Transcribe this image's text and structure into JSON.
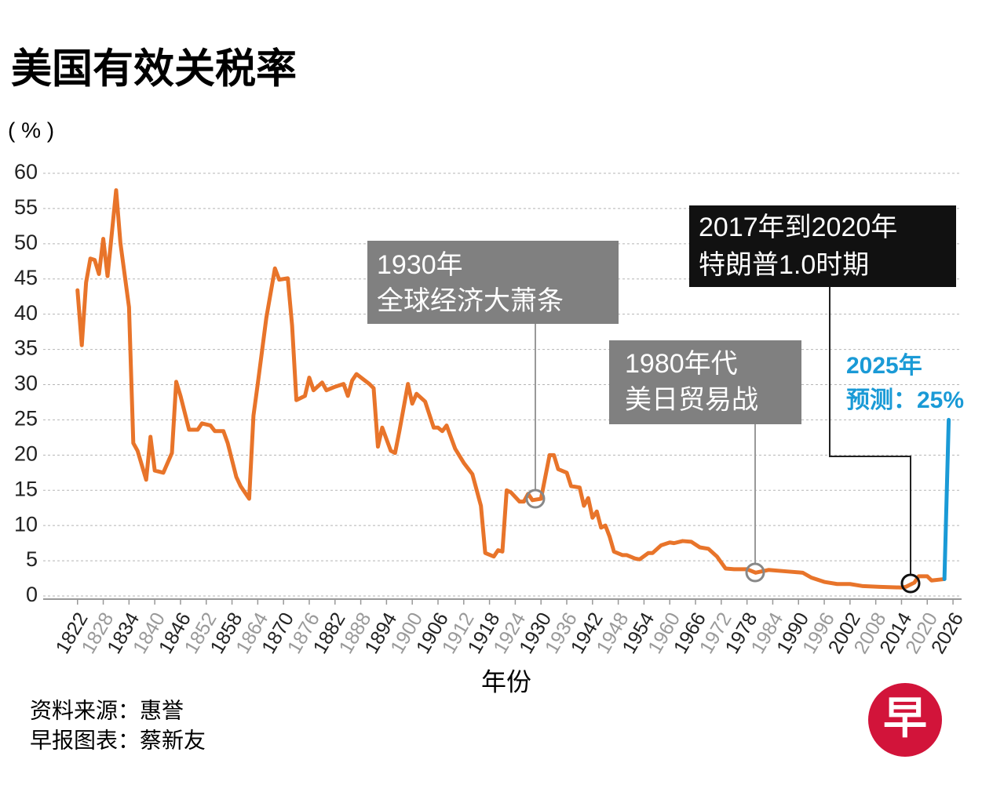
{
  "chart_data": {
    "type": "line",
    "title": "美国有效关税率",
    "y_label": "( % )",
    "x_label": "年份",
    "source": [
      "资料来源：惠誉",
      "早报图表：蔡新友"
    ],
    "logo": "早",
    "annotations": [
      {
        "lines": [
          "1930年",
          "全球经济大萧条"
        ]
      },
      {
        "lines": [
          "1980年代",
          "美日贸易战"
        ]
      },
      {
        "lines": [
          "2017年到2020年",
          "特朗普1.0时期"
        ]
      },
      {
        "lines": [
          "2025年",
          "预测：25%"
        ]
      }
    ],
    "xlim": [
      1814,
      2028
    ],
    "xticks": [
      1822,
      1828,
      1834,
      1840,
      1846,
      1852,
      1858,
      1864,
      1870,
      1876,
      1882,
      1888,
      1894,
      1900,
      1906,
      1912,
      1918,
      1924,
      1930,
      1936,
      1942,
      1948,
      1954,
      1960,
      1966,
      1972,
      1978,
      1984,
      1990,
      1996,
      2002,
      2008,
      2014,
      2020,
      2026
    ],
    "ylim": [
      0,
      60
    ],
    "yticks": [
      0,
      5,
      10,
      15,
      20,
      25,
      30,
      35,
      40,
      45,
      50,
      55,
      60
    ],
    "grid": true,
    "series": [
      {
        "color": "#e8742a",
        "x": [
          1822,
          1823,
          1824,
          1825,
          1826,
          1827,
          1828,
          1829,
          1831,
          1832,
          1834,
          1835,
          1836,
          1838,
          1839,
          1840,
          1842,
          1844,
          1845,
          1846,
          1848,
          1850,
          1851,
          1853,
          1854,
          1856,
          1857,
          1859,
          1860,
          1862,
          1863,
          1864,
          1866,
          1868,
          1869,
          1871,
          1872,
          1873,
          1875,
          1876,
          1877,
          1879,
          1880,
          1882,
          1884,
          1885,
          1886,
          1887,
          1890,
          1891,
          1892,
          1893,
          1895,
          1896,
          1897,
          1899,
          1900,
          1901,
          1903,
          1905,
          1906,
          1907,
          1908,
          1910,
          1912,
          1914,
          1916,
          1917,
          1919,
          1920,
          1921,
          1922,
          1923,
          1925,
          1926,
          1927,
          1928,
          1930,
          1932,
          1933,
          1934,
          1936,
          1937,
          1939,
          1940,
          1941,
          1942,
          1943,
          1944,
          1945,
          1946,
          1947,
          1949,
          1950,
          1952,
          1953,
          1955,
          1956,
          1958,
          1960,
          1961,
          1963,
          1965,
          1967,
          1969,
          1971,
          1973,
          1975,
          1978,
          1980,
          1983,
          1987,
          1991,
          1993,
          1996,
          1999,
          2002,
          2005,
          2009,
          2014,
          2015,
          2017,
          2018,
          2020,
          2021,
          2024
        ],
        "values": [
          43.4,
          35.6,
          44.5,
          47.9,
          47.7,
          45.7,
          50.7,
          45.4,
          57.6,
          50.1,
          41,
          21.7,
          20.6,
          16.5,
          22.6,
          17.8,
          17.5,
          20.3,
          30.4,
          28.4,
          23.6,
          23.6,
          24.5,
          24.2,
          23.4,
          23.4,
          21.7,
          16.9,
          15.6,
          13.8,
          25.6,
          30.1,
          39.5,
          46.5,
          44.9,
          45.1,
          38.4,
          27.8,
          28.4,
          31,
          29.2,
          30.3,
          29.2,
          29.7,
          30.1,
          28.4,
          30.6,
          31.5,
          30.1,
          29.5,
          21.2,
          23.9,
          20.6,
          20.3,
          23.4,
          30.1,
          27.3,
          28.7,
          27.6,
          23.9,
          23.9,
          23.4,
          24.2,
          20.9,
          18.9,
          17.3,
          12.8,
          6.1,
          5.6,
          6.5,
          6.3,
          15.0,
          14.7,
          13.4,
          13.4,
          14.5,
          13.6,
          13.8,
          20.0,
          20.0,
          18.0,
          17.5,
          15.6,
          15.4,
          12.8,
          13.9,
          11.1,
          12.0,
          9.7,
          10.0,
          8.4,
          6.3,
          5.8,
          5.8,
          5.3,
          5.2,
          6.1,
          6.1,
          7.2,
          7.6,
          7.5,
          7.8,
          7.7,
          6.9,
          6.7,
          5.6,
          3.9,
          3.8,
          3.8,
          3.3,
          3.7,
          3.5,
          3.3,
          2.6,
          2.0,
          1.7,
          1.7,
          1.4,
          1.3,
          1.2,
          1.3,
          1.9,
          2.8,
          2.8,
          2.2,
          2.4
        ]
      },
      {
        "color": "#1a9ad6",
        "x": [
          2024,
          2025
        ],
        "values": [
          2.4,
          25
        ]
      }
    ]
  }
}
